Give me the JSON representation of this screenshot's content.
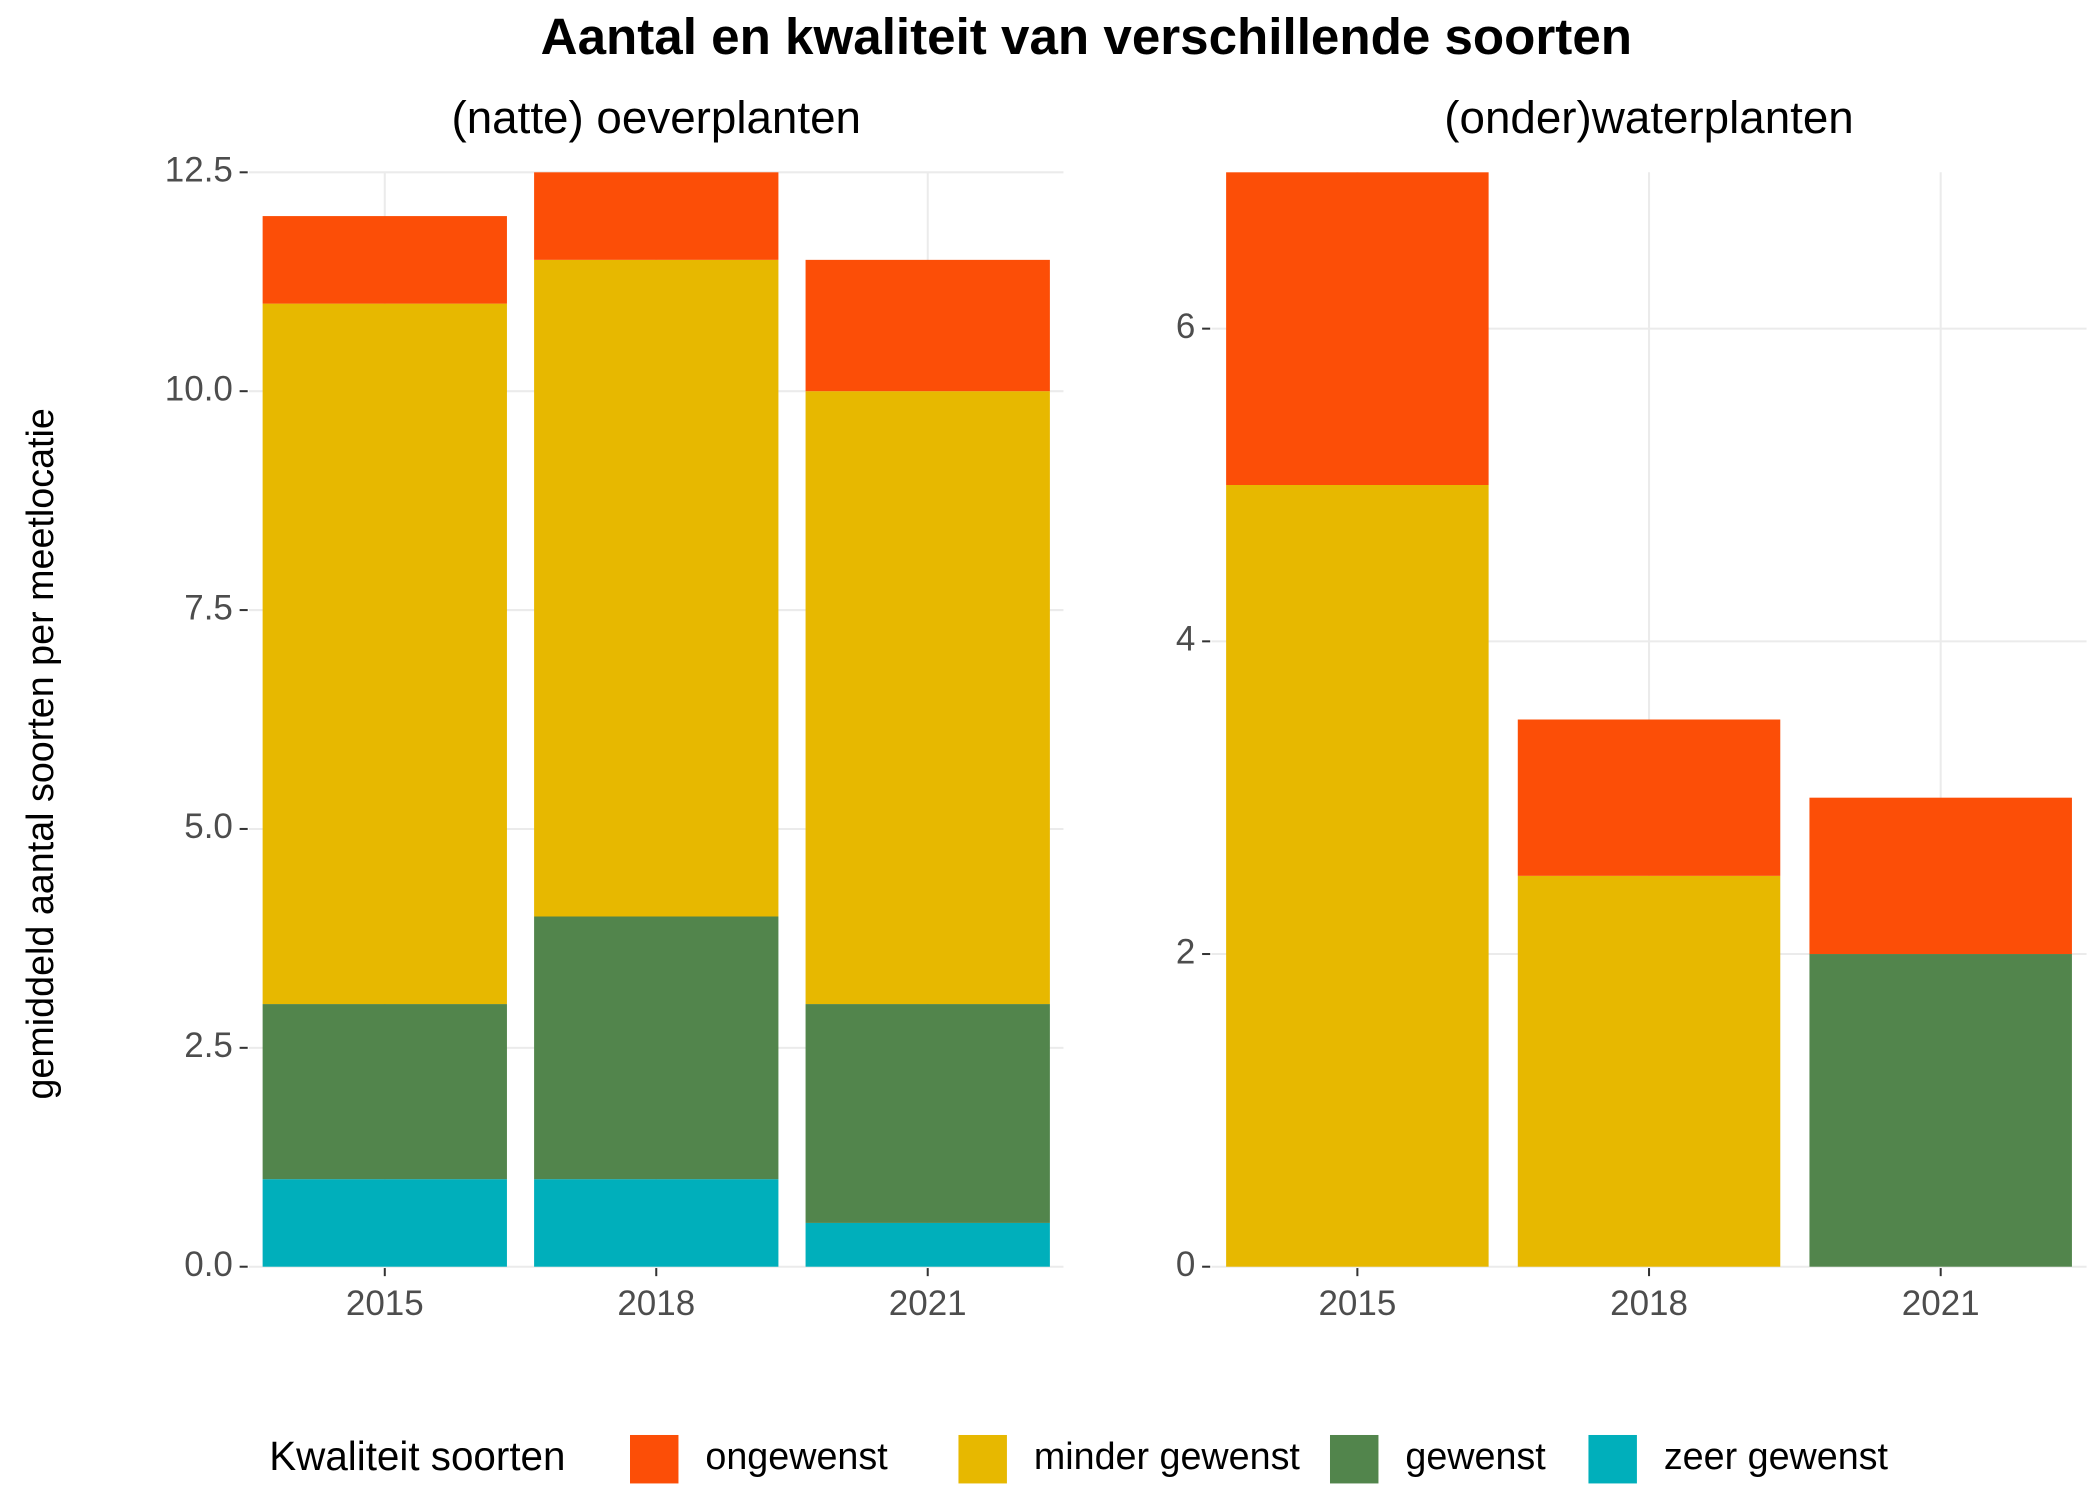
{
  "title": "Aantal en kwaliteit van verschillende soorten",
  "y_axis_label": "gemiddeld aantal soorten per meetlocatie",
  "legend_title": "Kwaliteit soorten",
  "chart_data": [
    {
      "type": "bar",
      "stacked": true,
      "subtitle": "(natte) oeverplanten",
      "categories": [
        "2015",
        "2018",
        "2021"
      ],
      "series": [
        {
          "name": "ongewenst",
          "color": "#fc4e07",
          "values": [
            1,
            1,
            1.5
          ]
        },
        {
          "name": "minder gewenst",
          "color": "#e7b800",
          "values": [
            8,
            7.5,
            7
          ]
        },
        {
          "name": "gewenst",
          "color": "#52854c",
          "values": [
            2,
            3,
            2.5
          ]
        },
        {
          "name": "zeer gewenst",
          "color": "#00afbb",
          "values": [
            1,
            1,
            0.5
          ]
        }
      ],
      "ylim": [
        0,
        12.5
      ],
      "yticks": [
        {
          "value": 0,
          "label": "0.0"
        },
        2.5,
        {
          "value": 5,
          "label": "5.0"
        },
        7.5,
        {
          "value": 10,
          "label": "10.0"
        },
        12.5
      ],
      "grid": true
    },
    {
      "type": "bar",
      "stacked": true,
      "subtitle": "(onder)waterplanten",
      "categories": [
        "2015",
        "2018",
        "2021"
      ],
      "series": [
        {
          "name": "ongewenst",
          "color": "#fc4e07",
          "values": [
            2,
            1,
            1
          ]
        },
        {
          "name": "minder gewenst",
          "color": "#e7b800",
          "values": [
            5,
            2.5,
            0
          ]
        },
        {
          "name": "gewenst",
          "color": "#52854c",
          "values": [
            0,
            0,
            2
          ]
        }
      ],
      "ylim": [
        0,
        7
      ],
      "yticks": [
        0,
        2,
        4,
        6
      ],
      "grid": true
    }
  ]
}
